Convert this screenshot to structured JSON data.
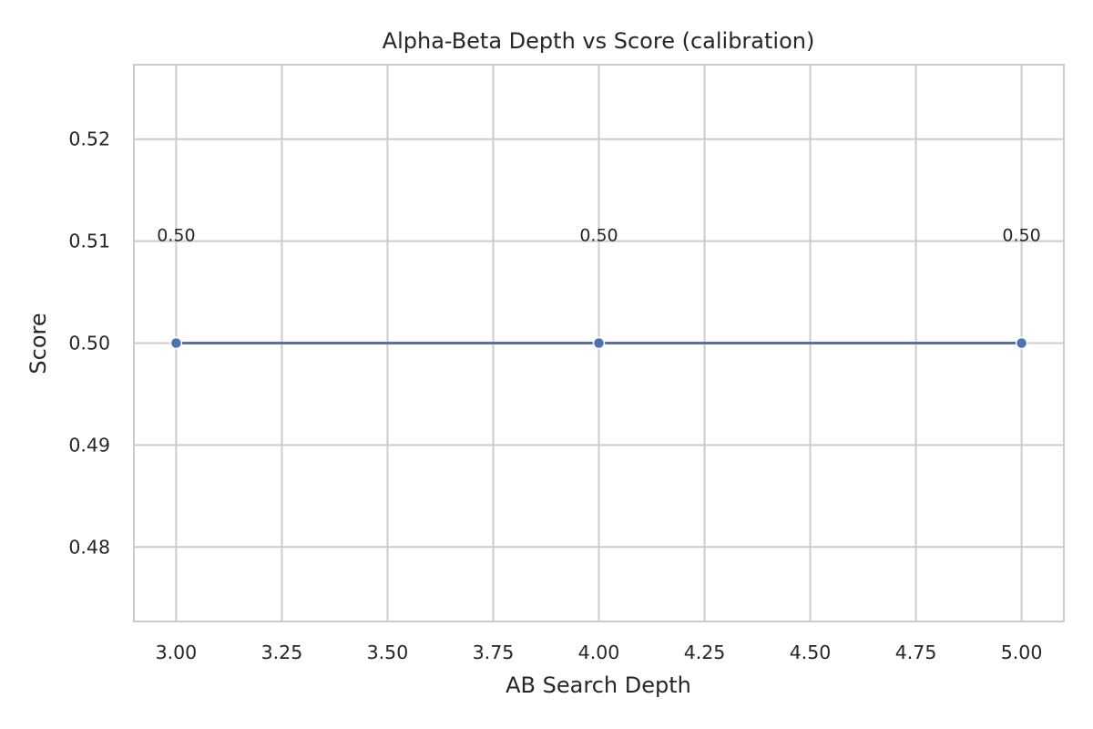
{
  "chart_data": {
    "type": "line",
    "title": "Alpha-Beta Depth vs Score (calibration)",
    "xlabel": "AB Search Depth",
    "ylabel": "Score",
    "xlim": [
      2.9,
      5.1
    ],
    "ylim": [
      0.4727,
      0.5273
    ],
    "x_ticks": [
      3.0,
      3.25,
      3.5,
      3.75,
      4.0,
      4.25,
      4.5,
      4.75,
      5.0
    ],
    "x_tick_labels": [
      "3.00",
      "3.25",
      "3.50",
      "3.75",
      "4.00",
      "4.25",
      "4.50",
      "4.75",
      "5.00"
    ],
    "y_ticks": [
      0.48,
      0.49,
      0.5,
      0.51,
      0.52
    ],
    "y_tick_labels": [
      "0.48",
      "0.49",
      "0.50",
      "0.51",
      "0.52"
    ],
    "grid": true,
    "legend": "none",
    "series": [
      {
        "color": "#4c72b0",
        "x": [
          3,
          4,
          5
        ],
        "y": [
          0.5,
          0.5,
          0.5
        ],
        "labels": [
          "0.50",
          "0.50",
          "0.50"
        ]
      }
    ]
  }
}
